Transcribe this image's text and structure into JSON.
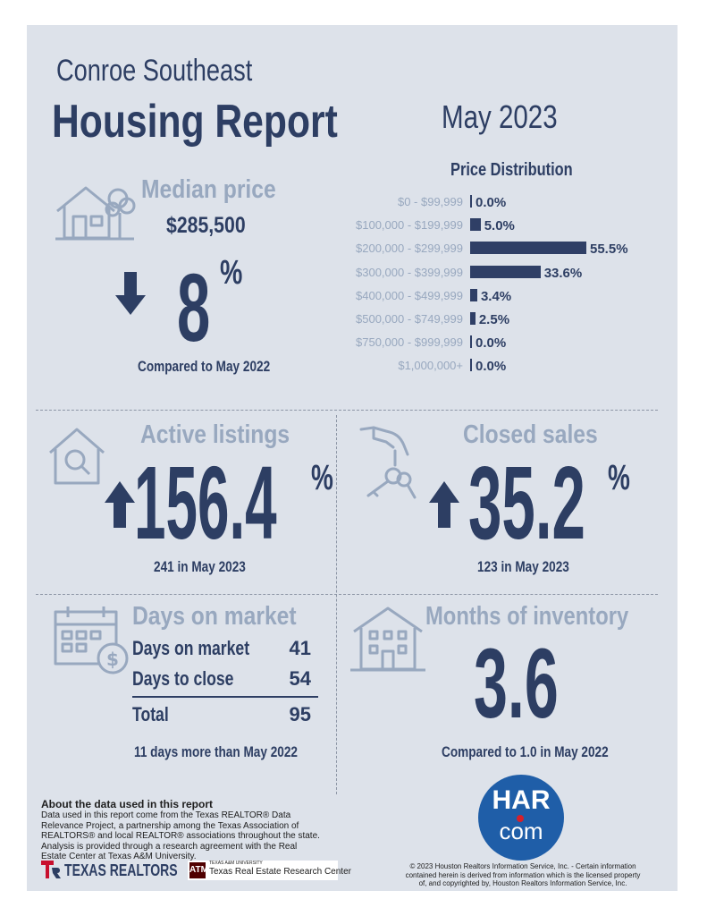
{
  "header": {
    "area": "Conroe Southeast",
    "title": "Housing Report",
    "month": "May 2023"
  },
  "median_price": {
    "title": "Median price",
    "value": "$285,500",
    "change": "8",
    "unit": "%",
    "direction": "down",
    "compared": "Compared to May 2022"
  },
  "price_distribution": {
    "title": "Price Distribution",
    "rows": [
      {
        "label": "$0 - $99,999",
        "value": "0.0%",
        "pct": 0.0
      },
      {
        "label": "$100,000 - $199,999",
        "value": "5.0%",
        "pct": 5.0
      },
      {
        "label": "$200,000 - $299,999",
        "value": "55.5%",
        "pct": 55.5
      },
      {
        "label": "$300,000 - $399,999",
        "value": "33.6%",
        "pct": 33.6
      },
      {
        "label": "$400,000 - $499,999",
        "value": "3.4%",
        "pct": 3.4
      },
      {
        "label": "$500,000 - $749,999",
        "value": "2.5%",
        "pct": 2.5
      },
      {
        "label": "$750,000 - $999,999",
        "value": "0.0%",
        "pct": 0.0
      },
      {
        "label": "$1,000,000+",
        "value": "0.0%",
        "pct": 0.0
      }
    ]
  },
  "active_listings": {
    "title": "Active listings",
    "change": "156.4",
    "unit": "%",
    "direction": "up",
    "detail": "241 in May 2023"
  },
  "closed_sales": {
    "title": "Closed sales",
    "change": "35.2",
    "unit": "%",
    "direction": "up",
    "detail": "123 in May 2023"
  },
  "days_on_market": {
    "title": "Days on market",
    "rows": [
      {
        "label": "Days on market",
        "value": "41"
      },
      {
        "label": "Days to close",
        "value": "54"
      }
    ],
    "total_label": "Total",
    "total_value": "95",
    "note": "11 days more than May 2022"
  },
  "months_inventory": {
    "title": "Months of inventory",
    "value": "3.6",
    "compared": "Compared to 1.0 in May 2022"
  },
  "about": {
    "title": "About the data used in this report",
    "text": "Data used in this report come from the Texas REALTOR® Data Relevance Project, a partnership among the Texas Association of REALTORS® and local REALTOR® associations throughout the state. Analysis is provided through a research agreement with the Real Estate Center at Texas A&M University."
  },
  "logos": {
    "texas_realtors": "TEXAS REALTORS",
    "tamu_small": "TEXAS A&M UNIVERSITY",
    "tamu_center": "Texas Real Estate Research Center",
    "har_top": "HAR",
    "har_bottom": "com"
  },
  "copyright": "© 2023 Houston Realtors Information Service, Inc. - Certain information contained herein is derived from information which is the licensed property of, and copyrighted by, Houston Realtors Information Service, Inc.",
  "colors": {
    "navy": "#2d3e63",
    "muted": "#98a8bf",
    "panel": "#dde2ea",
    "har_blue": "#1f5ea8",
    "har_red": "#d6202b",
    "tr_red": "#c8102e"
  }
}
